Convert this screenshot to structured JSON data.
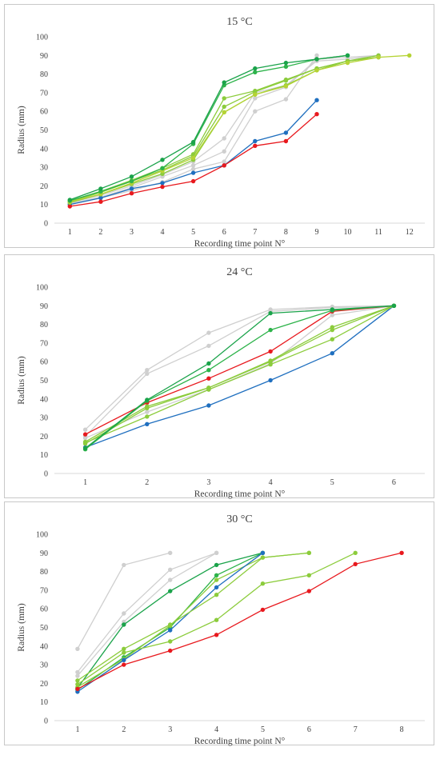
{
  "colors": {
    "blue": "#1f6fbf",
    "red": "#e8191e",
    "dark_green": "#1aa34a",
    "green": "#2db34a",
    "light_green": "#8ccc3c",
    "yellow_green": "#b5d334",
    "light_gray": "#cfcfcf",
    "axis": "#d9d9d9",
    "text": "#404040"
  },
  "chart_data": [
    {
      "type": "line",
      "title": "15 °C",
      "xlabel": "Recording time point N°",
      "ylabel": "Radius (mm)",
      "ylim": [
        0,
        100
      ],
      "yticks": [
        "0",
        "10",
        "20",
        "30",
        "40",
        "50",
        "60",
        "70",
        "80",
        "90",
        "100"
      ],
      "categories": [
        "1",
        "2",
        "3",
        "4",
        "5",
        "6",
        "7",
        "8",
        "9",
        "10",
        "11",
        "12"
      ],
      "grid": false,
      "legend": "none",
      "series": [
        {
          "color": "light_gray",
          "values": [
            10,
            13.5,
            17.5,
            22,
            29,
            33,
            60,
            66.5,
            90,
            null,
            null,
            null
          ]
        },
        {
          "color": "light_gray",
          "values": [
            10.5,
            14,
            19,
            25,
            31,
            38.5,
            67,
            73,
            88,
            89,
            90,
            null
          ]
        },
        {
          "color": "light_gray",
          "values": [
            11,
            15,
            20,
            26,
            33,
            45.5,
            70,
            74,
            87,
            88,
            90,
            null
          ]
        },
        {
          "color": "blue",
          "values": [
            10,
            13.5,
            18.5,
            21.5,
            27,
            31,
            44,
            48.5,
            66,
            null,
            null,
            null
          ]
        },
        {
          "color": "red",
          "values": [
            9,
            11.5,
            16,
            19.5,
            22.5,
            31,
            41.5,
            44,
            58.5,
            null,
            null,
            null
          ]
        },
        {
          "color": "light_green",
          "values": [
            11,
            15.5,
            21,
            26.5,
            34,
            59.5,
            69,
            74,
            82,
            87,
            90,
            null
          ]
        },
        {
          "color": "light_green",
          "values": [
            11.5,
            16.5,
            22.5,
            28.5,
            36,
            62.5,
            70.5,
            76.5,
            83,
            87,
            89,
            null
          ]
        },
        {
          "color": "light_green",
          "values": [
            12,
            17,
            23,
            29.5,
            37,
            67,
            71,
            77,
            83,
            87,
            89,
            null
          ]
        },
        {
          "color": "yellow_green",
          "values": [
            11.5,
            15.5,
            21.5,
            28,
            35,
            59.5,
            69,
            73.5,
            82,
            86,
            89,
            90
          ]
        },
        {
          "color": "green",
          "values": [
            12,
            17,
            22.5,
            29.5,
            42.5,
            74,
            81,
            84,
            88,
            90,
            null,
            null
          ]
        },
        {
          "color": "dark_green",
          "values": [
            12.5,
            18.5,
            25,
            34,
            43.5,
            75.5,
            83,
            86,
            88,
            90,
            null,
            null
          ]
        }
      ]
    },
    {
      "type": "line",
      "title": "24 °C",
      "xlabel": "Recording time point N°",
      "ylabel": "Radius (mm)",
      "ylim": [
        0,
        100
      ],
      "yticks": [
        "0",
        "10",
        "20",
        "30",
        "40",
        "50",
        "60",
        "70",
        "80",
        "90",
        "100"
      ],
      "categories": [
        "1",
        "2",
        "3",
        "4",
        "5",
        "6"
      ],
      "grid": false,
      "legend": "none",
      "series": [
        {
          "color": "light_gray",
          "values": [
            23.5,
            55.5,
            75.5,
            88,
            89.5,
            90
          ]
        },
        {
          "color": "light_gray",
          "values": [
            20,
            53.5,
            68.5,
            87,
            89,
            90
          ]
        },
        {
          "color": "light_gray",
          "values": [
            19,
            33,
            45,
            59,
            85,
            90
          ]
        },
        {
          "color": "red",
          "values": [
            21,
            38,
            51,
            65.5,
            87,
            90
          ]
        },
        {
          "color": "blue",
          "values": [
            14,
            26.5,
            36.5,
            50,
            64.5,
            90
          ]
        },
        {
          "color": "light_green",
          "values": [
            16.5,
            30.5,
            45,
            58.5,
            72,
            90
          ]
        },
        {
          "color": "light_green",
          "values": [
            16,
            35,
            46,
            60,
            77,
            90
          ]
        },
        {
          "color": "light_green",
          "values": [
            17,
            36,
            46,
            60.5,
            78.5,
            90
          ]
        },
        {
          "color": "green",
          "values": [
            13,
            39,
            55.5,
            77,
            87.5,
            90
          ]
        },
        {
          "color": "dark_green",
          "values": [
            13.5,
            39.5,
            59,
            86,
            88,
            90
          ]
        }
      ]
    },
    {
      "type": "line",
      "title": "30 °C",
      "xlabel": "Recording time point N°",
      "ylabel": "Radius (mm)",
      "ylim": [
        0,
        100
      ],
      "yticks": [
        "0",
        "10",
        "20",
        "30",
        "40",
        "50",
        "60",
        "70",
        "80",
        "90",
        "100"
      ],
      "categories": [
        "1",
        "2",
        "3",
        "4",
        "5",
        "6",
        "7",
        "8"
      ],
      "grid": false,
      "legend": "none",
      "series": [
        {
          "color": "light_gray",
          "values": [
            38.5,
            83.5,
            90,
            null,
            null,
            null,
            null,
            null
          ]
        },
        {
          "color": "light_gray",
          "values": [
            26,
            57.5,
            81,
            90,
            null,
            null,
            null,
            null
          ]
        },
        {
          "color": "light_gray",
          "values": [
            24,
            53,
            75.5,
            90,
            null,
            null,
            null,
            null
          ]
        },
        {
          "color": "dark_green",
          "values": [
            17.5,
            51.5,
            69.5,
            83.5,
            90,
            null,
            null,
            null
          ]
        },
        {
          "color": "green",
          "values": [
            16.5,
            34,
            50,
            78,
            90,
            null,
            null,
            null
          ]
        },
        {
          "color": "light_green",
          "values": [
            18,
            33,
            51,
            75.5,
            87.5,
            90,
            null,
            null
          ]
        },
        {
          "color": "blue",
          "values": [
            15.5,
            32.5,
            48.5,
            71.5,
            90,
            null,
            null,
            null
          ]
        },
        {
          "color": "light_green",
          "values": [
            21.5,
            38.5,
            51.5,
            67.5,
            87.5,
            90,
            null,
            null
          ]
        },
        {
          "color": "light_green",
          "values": [
            19.5,
            36.5,
            42.5,
            54,
            73.5,
            78,
            90,
            null
          ]
        },
        {
          "color": "red",
          "values": [
            17,
            30,
            37.5,
            46,
            59.5,
            69.5,
            84,
            90
          ]
        }
      ]
    }
  ]
}
